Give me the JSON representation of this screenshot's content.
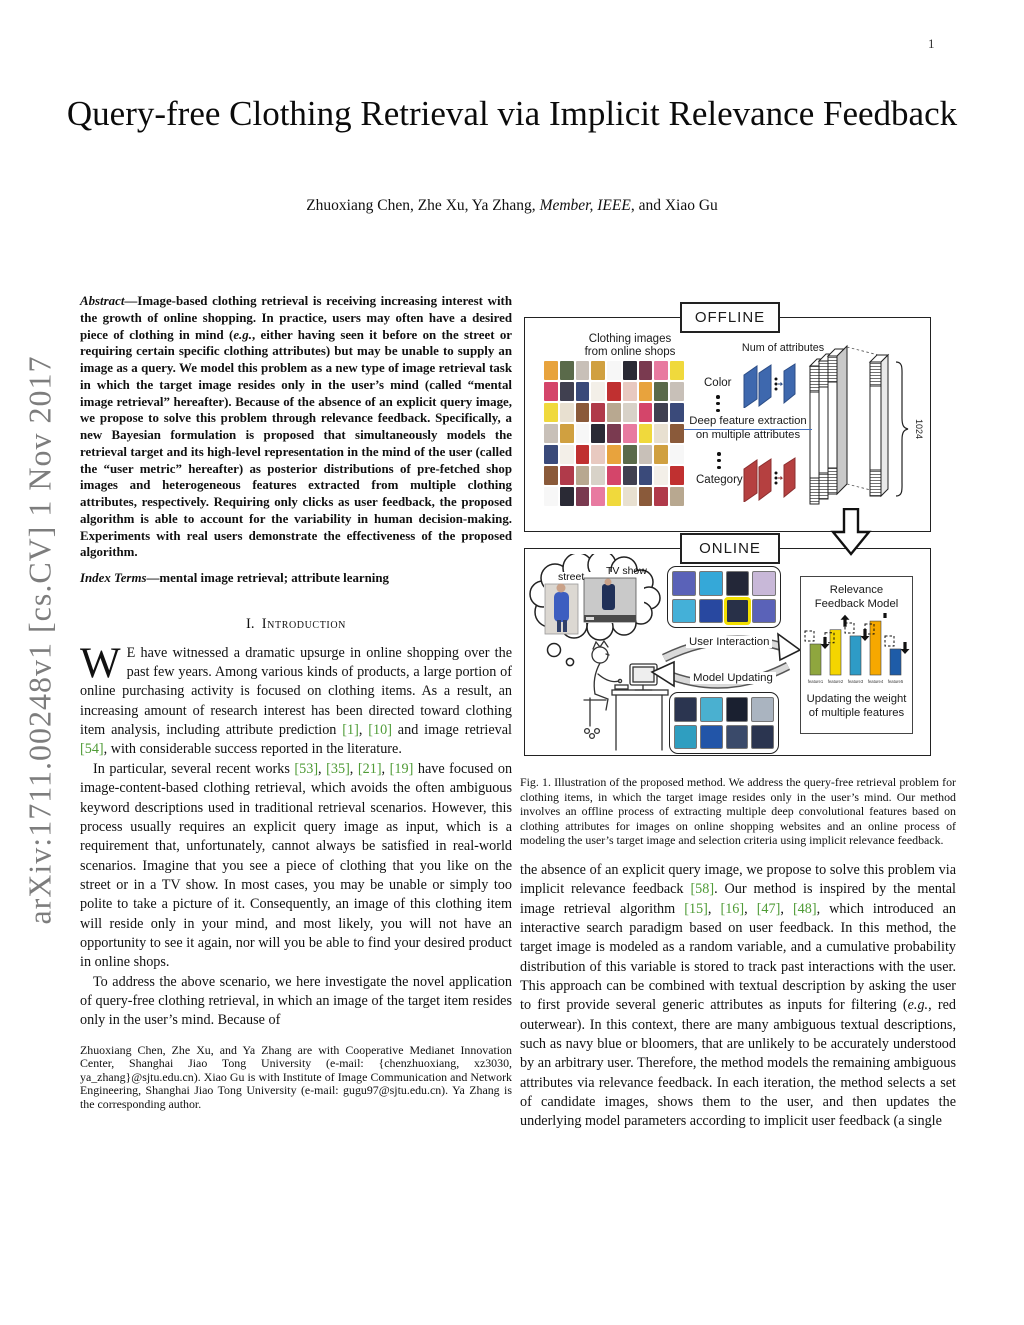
{
  "page": {
    "number": "1"
  },
  "watermark": "arXiv:1711.00248v1  [cs.CV]  1 Nov 2017",
  "title": "Query-free Clothing Retrieval via Implicit Relevance Feedback",
  "authors": {
    "prefix": "Zhuoxiang Chen, Zhe Xu, Ya Zhang, ",
    "membership": "Member, IEEE",
    "suffix": ", and Xiao Gu"
  },
  "abstract": {
    "label": "Abstract",
    "text": "—Image-based clothing retrieval is receiving increasing interest with the growth of online shopping. In practice, users may often have a desired piece of clothing in mind (e.g., either having seen it before on the street or requiring certain specific clothing attributes) but may be unable to supply an image as a query. We model this problem as a new type of image retrieval task in which the target image resides only in the user’s mind (called “mental image retrieval” hereafter). Because of the absence of an explicit query image, we propose to solve this problem through relevance feedback. Specifically, a new Bayesian formulation is proposed that simultaneously models the retrieval target and its high-level representation in the mind of the user (called the “user metric” hereafter) as posterior distributions of pre-fetched shop images and heterogeneous features extracted from multiple clothing attributes, respectively. Requiring only clicks as user feedback, the proposed algorithm is able to account for the variability in human decision-making. Experiments with real users demonstrate the effectiveness of the proposed algorithm."
  },
  "index_terms": {
    "label": "Index Terms",
    "text": "—mental image retrieval; attribute learning"
  },
  "section1": {
    "number": "I.",
    "title": "Introduction"
  },
  "intro_p1": {
    "dropcap": "W",
    "text": "E have witnessed a dramatic upsurge in online shopping over the past few years. Among various kinds of products, a large portion of online purchasing activity is focused on clothing items. As a result, an increasing amount of research interest has been directed toward clothing item analysis, including attribute prediction [1], [10] and image retrieval [54], with considerable success reported in the literature."
  },
  "intro_p2": "In particular, several recent works [53], [35], [21], [19] have focused on image-content-based clothing retrieval, which avoids the often ambiguous keyword descriptions used in traditional retrieval scenarios. However, this process usually requires an explicit query image as input, which is a requirement that, unfortunately, cannot always be satisfied in real-world scenarios. Imagine that you see a piece of clothing that you like on the street or in a TV show. In most cases, you may be unable or simply too polite to take a picture of it. Consequently, an image of this clothing item will reside only in your mind, and most likely, you will not have an opportunity to see it again, nor will you be able to find your desired product in online shops.",
  "intro_p3": "To address the above scenario, we here investigate the novel application of query-free clothing retrieval, in which an image of the target item resides only in the user’s mind. Because of",
  "footnote": "Zhuoxiang Chen, Zhe Xu, and Ya Zhang are with Cooperative Medianet Innovation Center, Shanghai Jiao Tong University (e-mail: {chenzhuoxiang, xz3030, ya_zhang}@sjtu.edu.cn). Xiao Gu is with Institute of Image Communication and Network Engineering, Shanghai Jiao Tong University (e-mail: gugu97@sjtu.edu.cn). Ya Zhang is the corresponding author.",
  "caption": "Fig. 1.  Illustration of the proposed method. We address the query-free retrieval problem for clothing items, in which the target image resides only in the user’s mind. Our method involves an offline process of extracting multiple deep convolutional features based on clothing attributes for images on online shopping websites and an online process of modeling the user’s target image and selection criteria using implicit relevance feedback.",
  "right_p1": "the absence of an explicit query image, we propose to solve this problem via implicit relevance feedback [58]. Our method is inspired by the mental image retrieval algorithm [15], [16], [47], [48], which introduced an interactive search paradigm based on user feedback. In this method, the target image is modeled as a random variable, and a cumulative probability distribution of this variable is stored to track past interactions with the user. This approach can be combined with textual description by asking the user to first provide several generic attributes as inputs for filtering (e.g., red outerwear). In this context, there are many ambiguous textual descriptions, such as navy blue or bloomers, that are unlikely to be accurately understood by an arbitrary user. Therefore, the method models the remaining ambiguous attributes via relevance feedback. In each iteration, the method selects a set of candidate images, shows them to the user, and then updates the underlying model parameters according to implicit user feedback (a single",
  "figure": {
    "offline": {
      "label": "OFFLINE",
      "grid_title_1": "Clothing images",
      "grid_title_2": "from online shops",
      "num_attributes": "Num of attributes",
      "color_label": "Color",
      "deep_line1": "Deep feature extraction",
      "deep_line2": "on multiple attributes",
      "category_label": "Category",
      "dim_label": "1024",
      "grid": {
        "cols": 9,
        "rows": 7,
        "palette": [
          "#e8a33d",
          "#f3efe8",
          "#d4456a",
          "#b03a4a",
          "#f0d93c",
          "#2a2a35",
          "#c8c0b8",
          "#e8c9c0",
          "#3a4a7a",
          "#d8d2c8",
          "#8a5a3a",
          "#e87aa0",
          "#f7f7f7",
          "#5a6a4a",
          "#c03030",
          "#404050",
          "#b8a890",
          "#e8e0d0",
          "#7a3a50",
          "#d0a040"
        ]
      }
    },
    "online": {
      "label": "ONLINE",
      "street_label": "street",
      "tv_label": "TV show",
      "user_interaction": "User Interaction",
      "model_updating": "Model Updating",
      "rfm_line1": "Relevance",
      "rfm_line2": "Feedback Model",
      "note_line1": "Updating the weight",
      "note_line2": "of multiple features",
      "grid_top": {
        "cols": 4,
        "rows": 2,
        "highlight": 6,
        "palette": [
          "#5a62b8",
          "#44b0d8",
          "#232738",
          "#283048",
          "#8a96a8",
          "#35a8d8",
          "#2848a0",
          "#c8b8d8"
        ]
      },
      "grid_bottom": {
        "cols": 4,
        "rows": 2,
        "highlight": -1,
        "palette": [
          "#2b3550",
          "#2f9ec0",
          "#1a2030",
          "#3a4a6a",
          "#25354a",
          "#4ab0d0",
          "#2255a8",
          "#aab4c0"
        ]
      }
    }
  },
  "chart_data": {
    "type": "bar",
    "title": "Relevance Feedback Model",
    "note": "Updating the weight of multiple features",
    "categories": [
      "feature1",
      "feature2",
      "feature3",
      "feature4",
      "feature5"
    ],
    "values": [
      0.5,
      0.73,
      0.63,
      0.87,
      0.42
    ],
    "directions": [
      "down",
      "up",
      "down",
      "up",
      "down"
    ],
    "colors": [
      "#8fa63e",
      "#f4d500",
      "#2e9bc6",
      "#f6a800",
      "#1e5ca8"
    ],
    "ylim": [
      0,
      1
    ],
    "legend": "none",
    "grid": "off"
  },
  "colors": {
    "citation_green": "#4f9b36",
    "cnn_blue": "#3e68ae",
    "cnn_red": "#b54040",
    "feature_line_blue": "#4472c4",
    "highlight_yellow": "#f2df00"
  }
}
